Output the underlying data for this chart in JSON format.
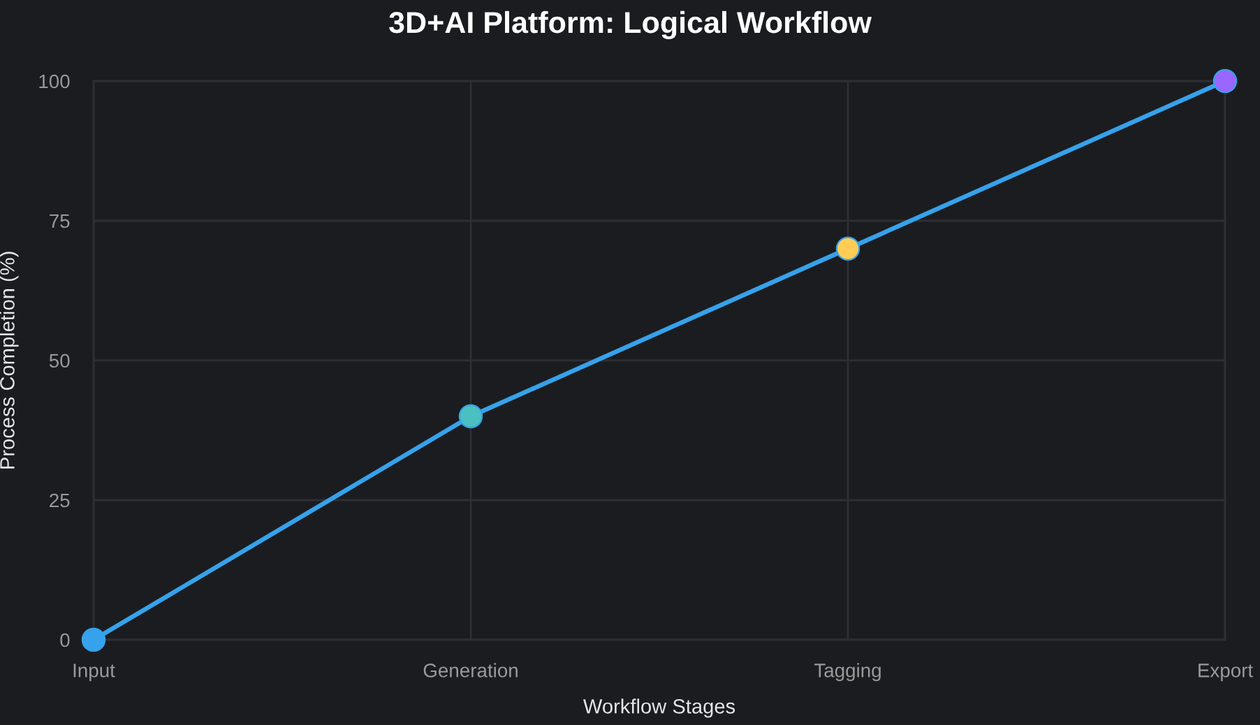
{
  "chart_data": {
    "type": "line",
    "title": "3D+AI Platform: Logical Workflow",
    "xlabel": "Workflow Stages",
    "ylabel": "Process Completion (%)",
    "categories": [
      "Input",
      "Generation",
      "Tagging",
      "Export"
    ],
    "series": [
      {
        "color": "#36a2eb",
        "colors": [
          "#36a2eb",
          "#4bc0c0",
          "#ffcd56",
          "#9966ff"
        ],
        "values": [
          0,
          40,
          70,
          100
        ]
      }
    ],
    "ylim": [
      0,
      100
    ],
    "yticks": [
      0,
      25,
      50,
      75,
      100
    ],
    "grid": true,
    "marker": "circle",
    "line_style": "solid"
  }
}
